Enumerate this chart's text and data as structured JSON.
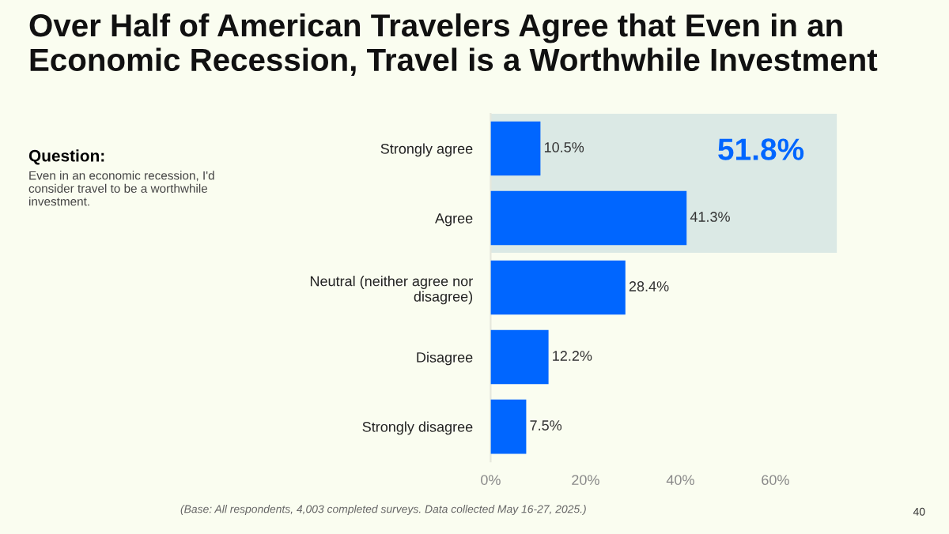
{
  "chart_data": {
    "type": "bar",
    "orientation": "horizontal",
    "title": "Over Half of American Travelers Agree that Even in an Economic Recession, Travel is a Worthwhile Investment",
    "categories": [
      "Strongly agree",
      "Agree",
      "Neutral (neither agree nor disagree)",
      "Disagree",
      "Strongly disagree"
    ],
    "values": [
      10.5,
      41.3,
      28.4,
      12.2,
      7.5
    ],
    "color": "#0066ff",
    "value_labels": [
      "10.5%",
      "41.3%",
      "28.4%",
      "12.2%",
      "7.5%"
    ],
    "xlim": [
      0,
      73
    ],
    "xticks": [
      {
        "value": 0,
        "label": "0%"
      },
      {
        "value": 20,
        "label": "20%"
      },
      {
        "value": 40,
        "label": "40%"
      },
      {
        "value": 60,
        "label": "60%"
      }
    ],
    "grid": false,
    "bands": [
      {
        "axis": "y",
        "from": "Strongly agree",
        "to": "Agree",
        "label": "51.8%",
        "color": "#dbe9e5"
      }
    ],
    "annotations": [
      "Question:",
      "Even in an economic recession, I'd consider travel to be a worthwhile investment.",
      "(Base: All respondents, 4,003 completed surveys. Data collected May 16-27, 2025.)",
      "40"
    ]
  }
}
